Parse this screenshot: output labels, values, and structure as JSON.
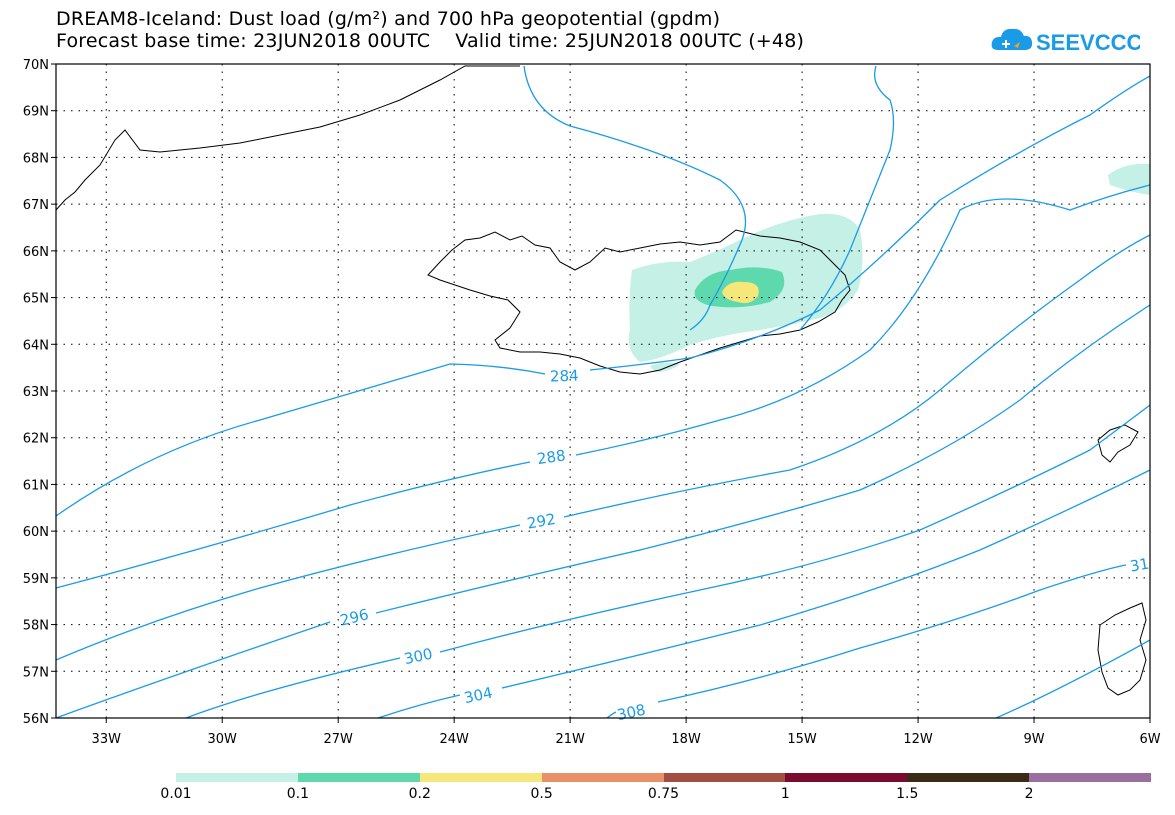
{
  "header": {
    "title_line1": "DREAM8-Iceland: Dust load (g/m²) and 700 hPa geopotential (gpdm)",
    "title_line2": "Forecast base time: 23JUN2018 00UTC    Valid time: 25JUN2018 00UTC (+48)"
  },
  "logo": {
    "text": "SEEVCCC",
    "color": "#1a9be8"
  },
  "map": {
    "lat_labels": [
      "70N",
      "69N",
      "68N",
      "67N",
      "66N",
      "65N",
      "64N",
      "63N",
      "62N",
      "61N",
      "60N",
      "59N",
      "58N",
      "57N",
      "56N"
    ],
    "lon_labels": [
      "33W",
      "30W",
      "27W",
      "24W",
      "21W",
      "18W",
      "15W",
      "12W",
      "9W",
      "6W"
    ],
    "contour_labels": [
      "284",
      "288",
      "292",
      "296",
      "300",
      "304",
      "308",
      "31"
    ],
    "contour_color": "#1a9be8",
    "coast_color": "#000000"
  },
  "legend": {
    "colors": [
      "#c4f0e6",
      "#5ed9ae",
      "#f5e77a",
      "#e89168",
      "#a24e40",
      "#7a0a2e",
      "#3b2a16",
      "#9a6fa0"
    ],
    "labels": [
      "0.01",
      "0.1",
      "0.2",
      "0.5",
      "0.75",
      "1",
      "1.5",
      "2"
    ]
  }
}
